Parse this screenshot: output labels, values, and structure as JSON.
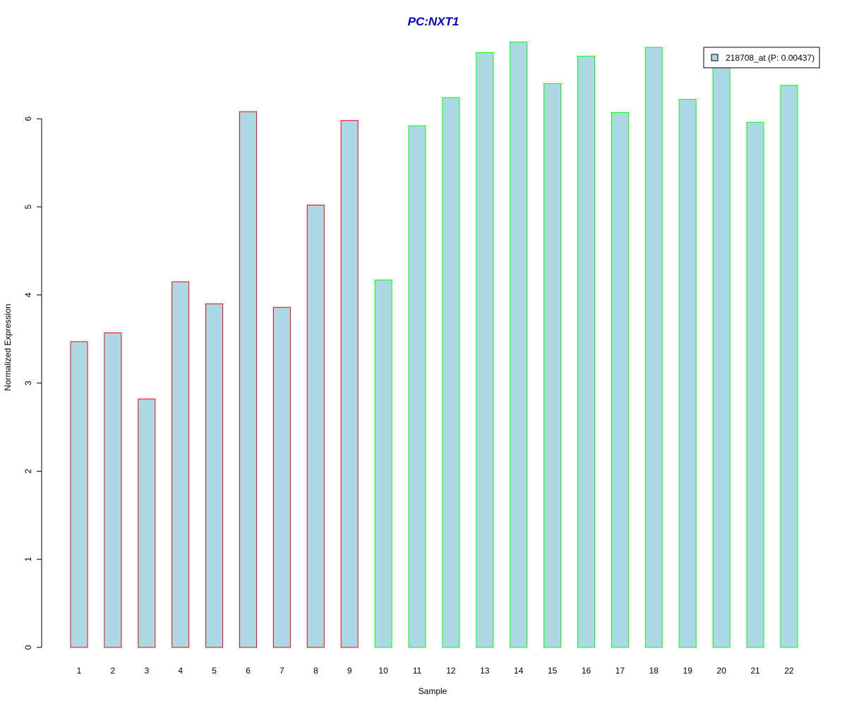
{
  "chart_data": {
    "type": "bar",
    "title": "PC:NXT1",
    "xlabel": "Sample",
    "ylabel": "Normalized Expression",
    "categories": [
      "1",
      "2",
      "3",
      "4",
      "5",
      "6",
      "7",
      "8",
      "9",
      "10",
      "11",
      "12",
      "13",
      "14",
      "15",
      "16",
      "17",
      "18",
      "19",
      "20",
      "21",
      "22"
    ],
    "values": [
      3.47,
      3.57,
      2.82,
      4.15,
      3.9,
      6.08,
      3.86,
      5.02,
      5.98,
      4.17,
      5.92,
      6.24,
      6.75,
      6.87,
      6.4,
      6.71,
      6.07,
      6.81,
      6.22,
      6.68,
      5.96,
      6.38
    ],
    "groups": [
      "red",
      "red",
      "red",
      "red",
      "red",
      "red",
      "red",
      "red",
      "red",
      "green",
      "green",
      "green",
      "green",
      "green",
      "green",
      "green",
      "green",
      "green",
      "green",
      "green",
      "green",
      "green"
    ],
    "yticks": [
      "0",
      "1",
      "2",
      "3",
      "4",
      "5",
      "6"
    ],
    "ylim": [
      0,
      6.87
    ],
    "grid": false,
    "legend": {
      "label": "218708_at (P: 0.00437)",
      "position": "top-right"
    },
    "colors": {
      "fill": "#add8e6",
      "red": "#ff0000",
      "green": "#00ff00",
      "title": "#0000cc"
    }
  }
}
